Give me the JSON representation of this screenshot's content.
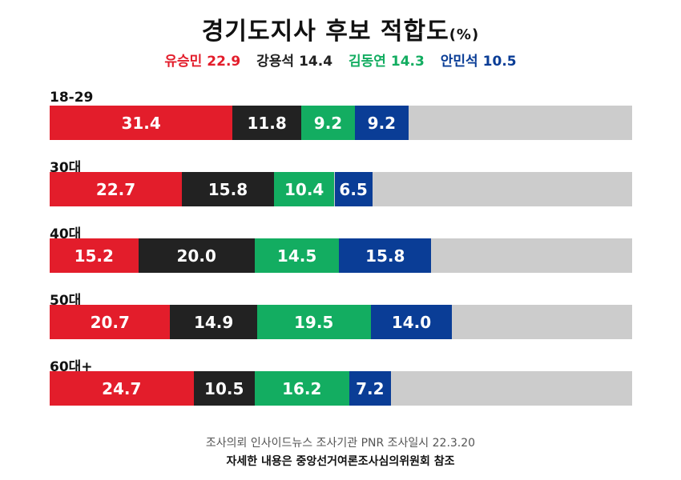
{
  "title": "경기도지사 후보 적합도",
  "title_suffix": "(%)",
  "legend": [
    {
      "name": "유승민",
      "value": "22.9",
      "color": "#e31d2b"
    },
    {
      "name": "강용석",
      "value": "14.4",
      "color": "#222222"
    },
    {
      "name": "김동연",
      "value": "14.3",
      "color": "#13ad61"
    },
    {
      "name": "안민석",
      "value": "10.5",
      "color": "#0a3d96"
    }
  ],
  "chart_data": {
    "type": "bar",
    "stacked": true,
    "orientation": "horizontal",
    "categories": [
      "18-29",
      "30대",
      "40대",
      "50대",
      "60대+"
    ],
    "xlim": [
      0,
      100
    ],
    "series": [
      {
        "name": "유승민",
        "color": "#e31d2b",
        "values": [
          31.4,
          22.7,
          15.2,
          20.7,
          24.7
        ]
      },
      {
        "name": "강용석",
        "color": "#222222",
        "values": [
          11.8,
          15.8,
          20.0,
          14.9,
          10.5
        ]
      },
      {
        "name": "김동연",
        "color": "#13ad61",
        "values": [
          9.2,
          10.4,
          14.5,
          19.5,
          16.2
        ]
      },
      {
        "name": "안민석",
        "color": "#0a3d96",
        "values": [
          9.2,
          6.5,
          15.8,
          14.0,
          7.2
        ]
      }
    ],
    "remainder_color": "#cccccc"
  },
  "footer": {
    "source": "조사의뢰 인사이드뉴스 조사기관 PNR 조사일시 22.3.20",
    "note": "자세한 내용은 중앙선거여론조사심의위원회 참조"
  }
}
